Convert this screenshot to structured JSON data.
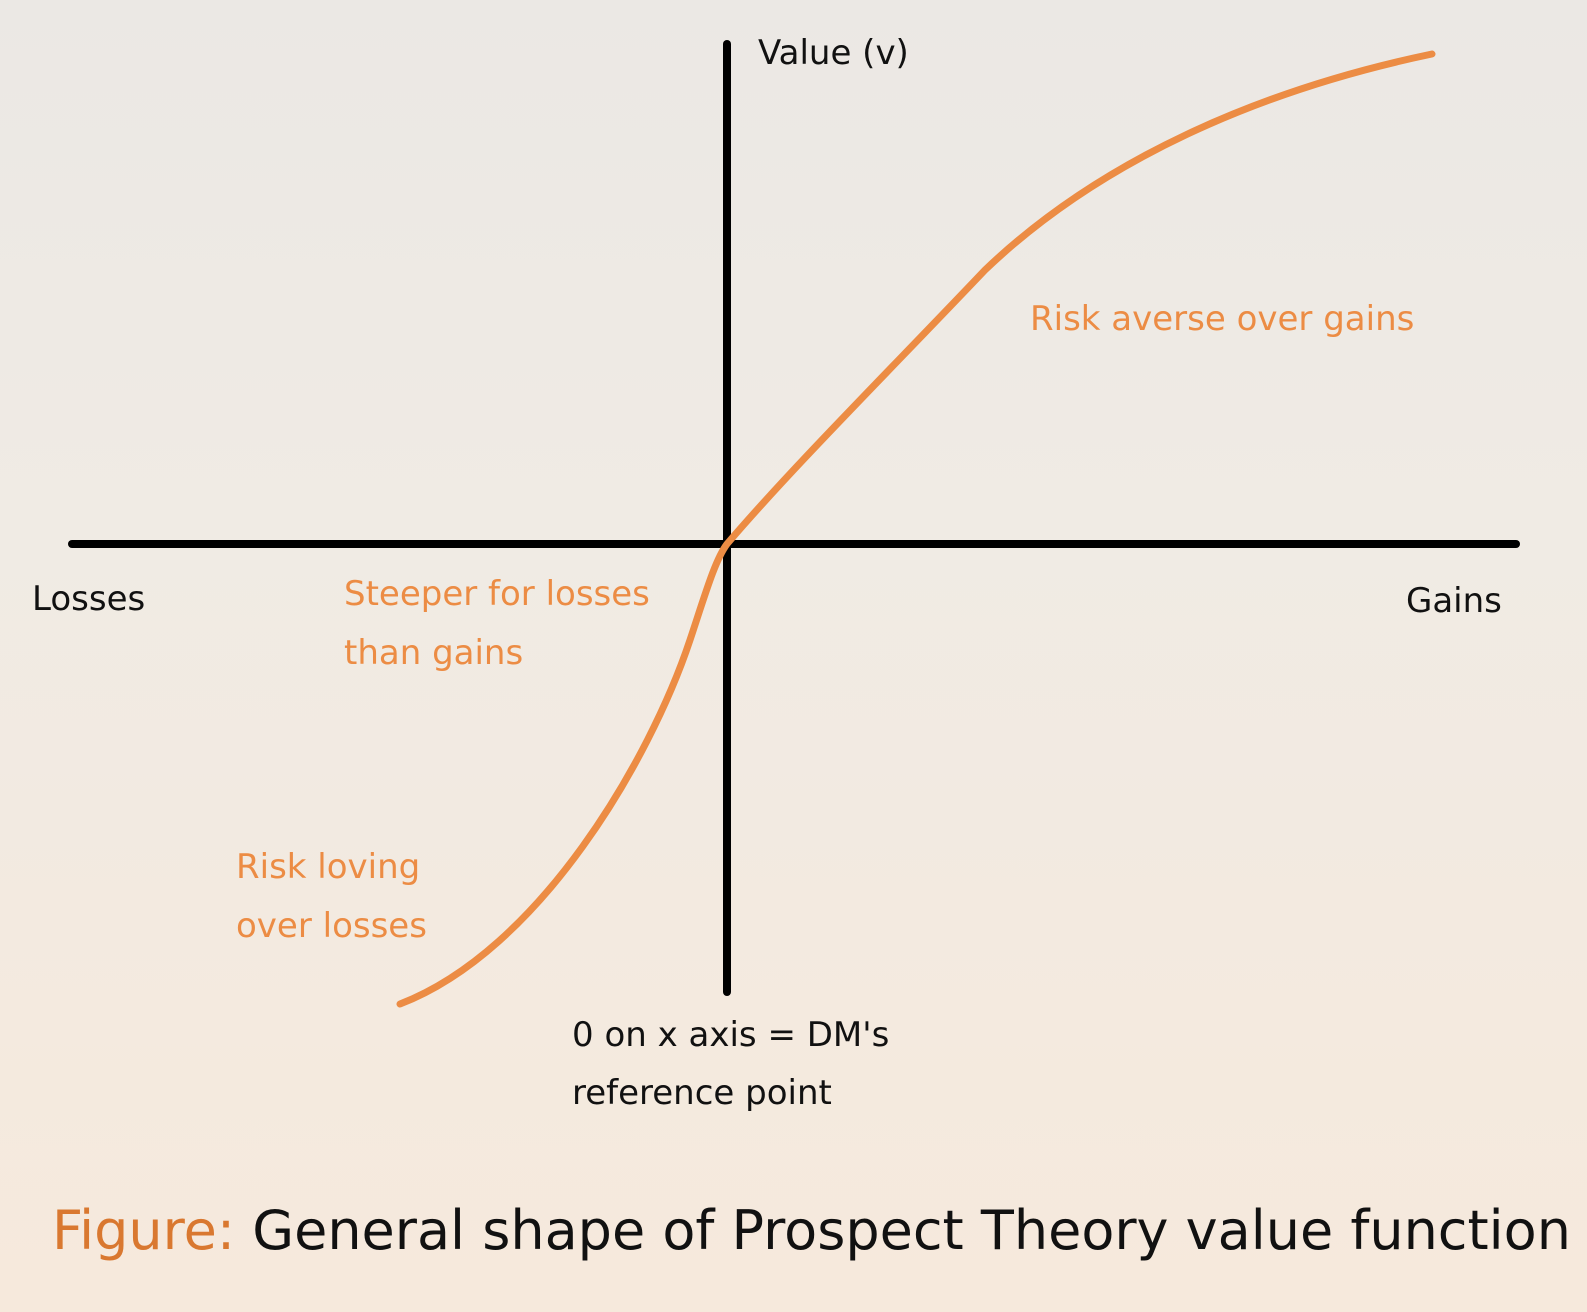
{
  "axes": {
    "y_label": "Value (v)",
    "x_left_label": "Losses",
    "x_right_label": "Gains",
    "origin_note_line1": "0 on x axis = DM's",
    "origin_note_line2": "reference point"
  },
  "annotations": {
    "gains_note": "Risk averse over gains",
    "steeper_line1": "Steeper for losses",
    "steeper_line2": "than gains",
    "losses_line1": "Risk loving",
    "losses_line2": "over losses"
  },
  "caption": {
    "prefix": "Figure:",
    "text": "General shape of Prospect Theory value function"
  },
  "colors": {
    "curve": "#ec8c44",
    "axis": "#000000",
    "annotation": "#ec8c44",
    "caption_prefix": "#d97830"
  }
}
